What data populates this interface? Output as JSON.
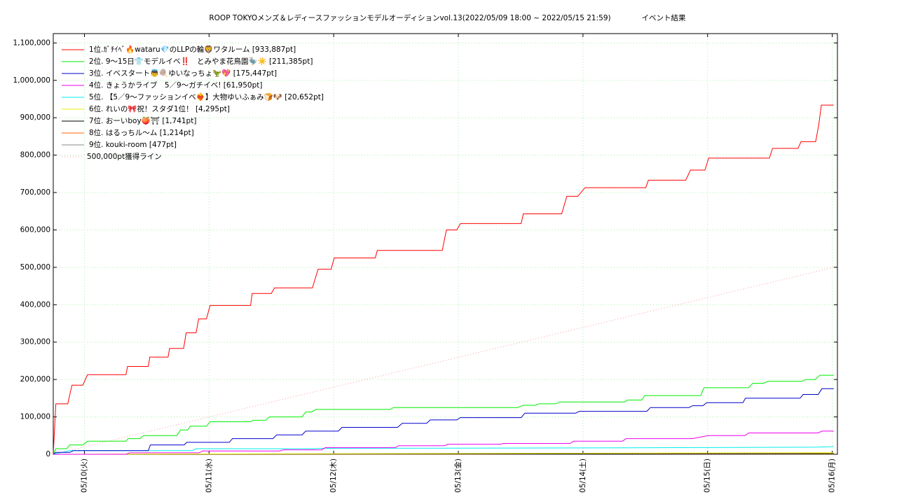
{
  "chart_data": {
    "type": "line",
    "title": "ROOP TOKYOメンズ＆レディースファッションモデルオーディションvol.13(2022/05/09 18:00 ~ 2022/05/15 21:59)",
    "subtitle": "イベント結果",
    "xlim": [
      0,
      151
    ],
    "xticks": [
      {
        "value": 6,
        "label": "05/10(火)"
      },
      {
        "value": 30,
        "label": "05/11(水)"
      },
      {
        "value": 54,
        "label": "05/12(木)"
      },
      {
        "value": 78,
        "label": "05/13(金)"
      },
      {
        "value": 102,
        "label": "05/14(土)"
      },
      {
        "value": 126,
        "label": "05/15(日)"
      },
      {
        "value": 150,
        "label": "05/16(月)"
      }
    ],
    "ylim": [
      0,
      1125000
    ],
    "yticks": [
      0,
      {
        "value": 100000,
        "label": "100,000"
      },
      {
        "value": 200000,
        "label": "200,000"
      },
      {
        "value": 300000,
        "label": "300,000"
      },
      {
        "value": 400000,
        "label": "400,000"
      },
      {
        "value": 500000,
        "label": "500,000"
      },
      {
        "value": 600000,
        "label": "600,000"
      },
      {
        "value": 700000,
        "label": "700,000"
      },
      {
        "value": 800000,
        "label": "800,000"
      },
      {
        "value": 900000,
        "label": "900,000"
      },
      {
        "value": 1000000,
        "label": "1,000,000"
      },
      {
        "value": 1100000,
        "label": "1,100,000"
      }
    ],
    "grid": true,
    "legend": "upper left",
    "series": [
      {
        "name": "1位.ｶﾞﾁｲﾍﾞ🔥wataru💎のLLPの輪🦁ワタルーム [933,887pt]",
        "color": "#ff0000",
        "x": [
          0,
          0.5,
          2.8,
          3.6,
          5.7,
          6.6,
          14.0,
          14.3,
          18.3,
          18.6,
          22.1,
          22.4,
          25.1,
          25.6,
          27.5,
          28.0,
          29.5,
          30.2,
          38.0,
          38.3,
          42.0,
          42.6,
          49.9,
          51.0,
          53.5,
          54.1,
          62.0,
          62.4,
          74.9,
          75.7,
          77.7,
          78.4,
          90.1,
          90.5,
          97.9,
          98.9,
          101.0,
          102.4,
          114.1,
          114.6,
          121.8,
          122.7,
          125.5,
          126.2,
          137.9,
          138.5,
          143.4,
          144.0,
          146.8,
          147.4,
          147.9,
          150.3
        ],
        "values": [
          0,
          135000,
          135000,
          185000,
          185000,
          213000,
          213000,
          235000,
          235000,
          260000,
          260000,
          283000,
          283000,
          325000,
          325000,
          362000,
          362000,
          398000,
          398000,
          430000,
          430000,
          445000,
          445000,
          495000,
          495000,
          525000,
          525000,
          545000,
          545000,
          600000,
          600000,
          617000,
          617000,
          643000,
          643000,
          690000,
          690000,
          713000,
          713000,
          733000,
          733000,
          760000,
          760000,
          792000,
          792000,
          818000,
          818000,
          836000,
          836000,
          880000,
          933887,
          933887
        ]
      },
      {
        "name": "2位. 9〜15日👕モデルイベ‼️　とみやま花鳥園🦤☀️ [211,385pt]",
        "color": "#00ee00",
        "x": [
          0,
          0.5,
          2.6,
          3.2,
          5.7,
          6.6,
          14.0,
          14.4,
          16.7,
          17.4,
          23.8,
          24.5,
          25.9,
          26.4,
          29.5,
          30.2,
          38.0,
          38.5,
          40.9,
          41.6,
          47.9,
          48.6,
          49.7,
          50.6,
          64.9,
          65.5,
          89.4,
          90.5,
          92.8,
          93.5,
          96.8,
          97.5,
          110.0,
          110.6,
          113.3,
          113.9,
          124.7,
          125.3,
          133.9,
          134.7,
          136.8,
          137.6,
          144.1,
          144.9,
          146.7,
          147.6,
          150.3
        ],
        "values": [
          0,
          15000,
          15000,
          25000,
          25000,
          35000,
          35000,
          42000,
          42000,
          50000,
          50000,
          65000,
          65000,
          75000,
          75000,
          87000,
          87000,
          91000,
          91000,
          100000,
          100000,
          113000,
          113000,
          120000,
          120000,
          125000,
          125000,
          131000,
          131000,
          135000,
          135000,
          140000,
          140000,
          145000,
          145000,
          157000,
          157000,
          178000,
          178000,
          190000,
          190000,
          195000,
          195000,
          200000,
          200000,
          211385,
          211385
        ]
      },
      {
        "name": "3位. イベスタート👼🍭ゆいなっちょ🦖💖 [175,447pt]",
        "color": "#0000cc",
        "x": [
          0,
          0.5,
          3.2,
          3.9,
          18.3,
          18.7,
          25.2,
          25.7,
          33.9,
          34.5,
          42.3,
          43.0,
          47.9,
          48.6,
          54.9,
          55.6,
          66.3,
          67.2,
          71.9,
          72.6,
          77.7,
          78.4,
          90.1,
          90.8,
          100.6,
          101.3,
          114.3,
          115.0,
          122.4,
          123.1,
          125.1,
          125.8,
          132.8,
          133.3,
          143.8,
          144.4,
          147.3,
          148.0,
          150.3
        ],
        "values": [
          0,
          5000,
          5000,
          10000,
          10000,
          25000,
          25000,
          32000,
          32000,
          42000,
          42000,
          52000,
          52000,
          62000,
          62000,
          72000,
          72000,
          83000,
          83000,
          92000,
          92000,
          98000,
          98000,
          110000,
          110000,
          115000,
          115000,
          125000,
          125000,
          130000,
          130000,
          138000,
          138000,
          150000,
          150000,
          160000,
          160000,
          175447,
          175447
        ]
      },
      {
        "name": "4位. きょうかライブ　5／9〜ガチイベ! [61,950pt]",
        "color": "#ee00ee",
        "x": [
          0,
          14.0,
          14.7,
          28.1,
          28.8,
          43.6,
          44.3,
          51.7,
          52.4,
          65.9,
          66.5,
          75.3,
          76.0,
          86.1,
          86.7,
          99.5,
          100.2,
          109.6,
          110.3,
          123.1,
          126.1,
          133.2,
          133.9,
          147.3,
          148.0,
          150.3
        ],
        "values": [
          0,
          0,
          4000,
          4000,
          9000,
          9000,
          12000,
          12000,
          18000,
          18000,
          23000,
          23000,
          27000,
          27000,
          29000,
          29000,
          35000,
          35000,
          42000,
          42000,
          50000,
          50000,
          57000,
          57000,
          61950,
          61950
        ]
      },
      {
        "name": "5位. 【5／9〜ファッションイベ❤️‍🔥】大物ゆいふぁみ🍞🐶 [20,652pt]",
        "color": "#00eeee",
        "x": [
          0,
          3.2,
          26.8,
          27.5,
          50.4,
          51.0,
          101.5,
          124.4,
          147.3,
          150.3
        ],
        "values": [
          0,
          10000,
          10000,
          15000,
          15000,
          16000,
          17000,
          18000,
          19000,
          20652
        ]
      },
      {
        "name": "6位. れいの🎀祝！スタダ1位！ [4,295pt]",
        "color": "#eeee00",
        "x": [
          0,
          150.3
        ],
        "values": [
          0,
          4295
        ]
      },
      {
        "name": "7位. おーいboy🍑⛩ [1,741pt]",
        "color": "#000000",
        "x": [
          0,
          150.3
        ],
        "values": [
          0,
          1741
        ]
      },
      {
        "name": "8位. はるっちル〜ム [1,214pt]",
        "color": "#ff6600",
        "x": [
          0,
          150.3
        ],
        "values": [
          0,
          1214
        ]
      },
      {
        "name": "9位. kouki-room [477pt]",
        "color": "#888888",
        "x": [
          0,
          150.3
        ],
        "values": [
          0,
          477
        ]
      },
      {
        "name": "500,000pt獲得ライン",
        "color": "#ff9999",
        "dash": true,
        "x": [
          0,
          150.3
        ],
        "values": [
          0,
          500000
        ]
      }
    ]
  }
}
